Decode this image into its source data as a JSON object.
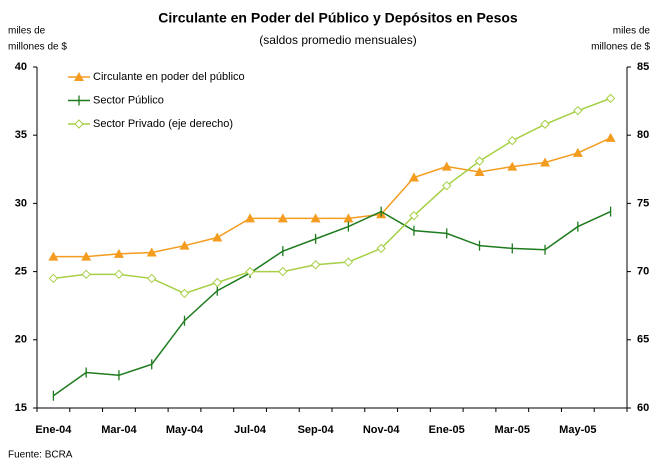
{
  "chart_data": {
    "type": "line",
    "title": "Circulante en Poder del Público y Depósitos en Pesos",
    "subtitle": "(saldos promedio mensuales)",
    "y_label": [
      "miles de",
      "millones de $"
    ],
    "y2_label": [
      "miles de",
      "millones de $"
    ],
    "source": "Fuente: BCRA",
    "categories": [
      "Ene-04",
      null,
      "Mar-04",
      null,
      "May-04",
      null,
      "Jul-04",
      null,
      "Sep-04",
      null,
      "Nov-04",
      null,
      "Ene-05",
      null,
      "Mar-05",
      null,
      "May-05",
      null
    ],
    "series": [
      {
        "name": "Circulante en poder del público",
        "color": "#f39c1f",
        "marker": "triangle",
        "values": [
          26.1,
          26.1,
          26.3,
          26.4,
          26.9,
          27.5,
          28.9,
          28.9,
          28.9,
          28.9,
          29.2,
          31.9,
          32.7,
          32.3,
          32.7,
          33.0,
          33.7,
          34.8
        ]
      },
      {
        "name": "Sector Público",
        "color": "#1e7b1e",
        "marker": "tick",
        "values": [
          15.9,
          17.6,
          17.4,
          18.2,
          21.4,
          23.6,
          24.9,
          26.5,
          27.4,
          28.3,
          29.4,
          28.0,
          27.8,
          26.9,
          26.7,
          26.6,
          28.3,
          29.4
        ]
      },
      {
        "name": "Sector Privado (eje derecho)",
        "color": "#a6cf45",
        "marker": "diamond",
        "axis": "y2",
        "values": [
          69.5,
          69.8,
          69.8,
          69.5,
          68.4,
          69.2,
          70.0,
          70.0,
          70.5,
          70.7,
          71.7,
          74.1,
          76.3,
          78.1,
          79.6,
          80.8,
          81.8,
          82.7
        ]
      }
    ],
    "ylim": [
      15,
      40
    ],
    "yticks": [
      15,
      20,
      25,
      30,
      35,
      40
    ],
    "y2lim": [
      60,
      85
    ],
    "y2ticks": [
      60,
      65,
      70,
      75,
      80,
      85
    ],
    "grid": false,
    "legend": "upper left"
  }
}
